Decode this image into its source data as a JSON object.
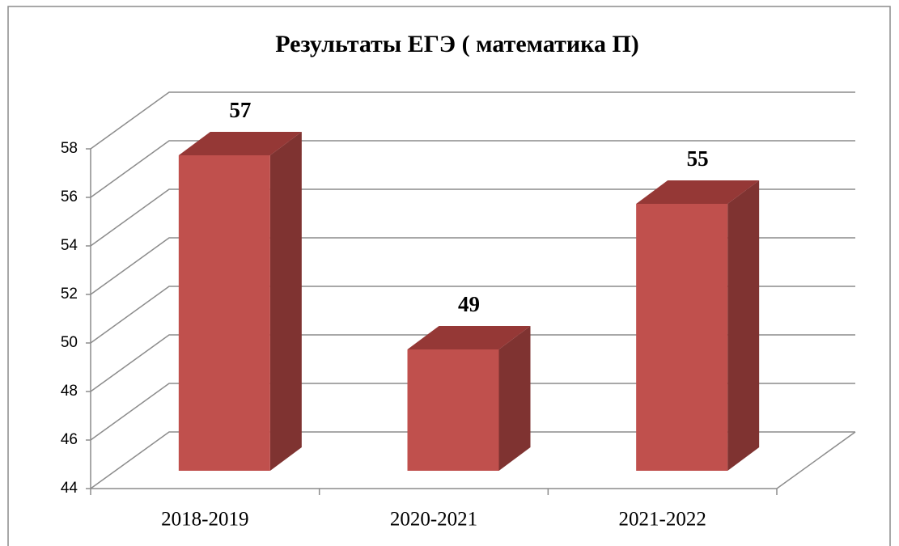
{
  "chart_data": {
    "type": "bar3d",
    "title": "Результаты ЕГЭ ( математика П)",
    "categories": [
      "2018-2019",
      "2020-2021",
      "2021-2022"
    ],
    "values": [
      57,
      49,
      55
    ],
    "color": "#c0504d",
    "ylim": [
      44,
      58
    ],
    "yticks": [
      44,
      46,
      48,
      50,
      52,
      54,
      56,
      58
    ],
    "grid": true
  }
}
